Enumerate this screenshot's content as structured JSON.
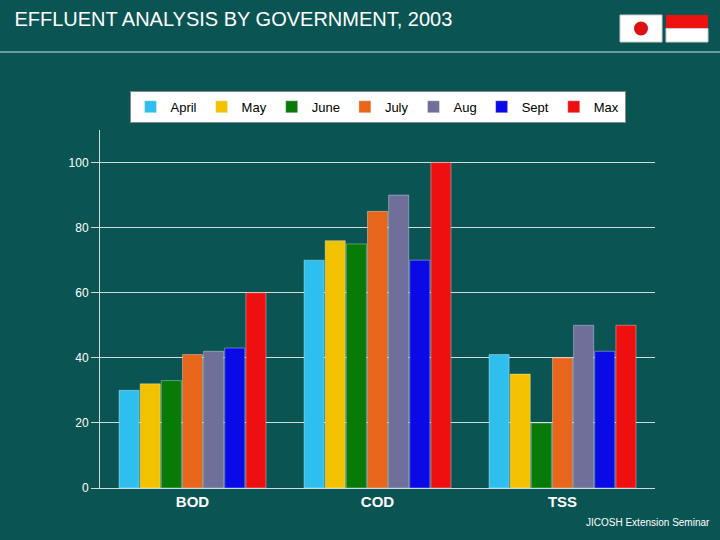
{
  "chart_data": {
    "type": "bar",
    "title": "EFFLUENT ANALYSIS BY GOVERNMENT, 2003",
    "categories": [
      "BOD",
      "COD",
      "TSS"
    ],
    "series": [
      {
        "name": "April",
        "color": "#2fbfee",
        "values": [
          30,
          70,
          41
        ]
      },
      {
        "name": "May",
        "color": "#f2c200",
        "values": [
          32,
          76,
          35
        ]
      },
      {
        "name": "June",
        "color": "#087a08",
        "values": [
          33,
          75,
          20
        ]
      },
      {
        "name": "July",
        "color": "#e8661c",
        "values": [
          41,
          85,
          40
        ]
      },
      {
        "name": "Aug",
        "color": "#6f6f99",
        "values": [
          42,
          90,
          50
        ]
      },
      {
        "name": "Sept",
        "color": "#0a0ae6",
        "values": [
          43,
          70,
          42
        ]
      },
      {
        "name": "Max",
        "color": "#ee1010",
        "values": [
          60,
          100,
          50
        ]
      }
    ],
    "ylim": [
      0,
      110
    ],
    "yticks": [
      0,
      20,
      40,
      60,
      80,
      100
    ],
    "grid": true,
    "legend": "top",
    "annotations": [
      {
        "text": "JICOSH Extension Seminar"
      }
    ]
  }
}
